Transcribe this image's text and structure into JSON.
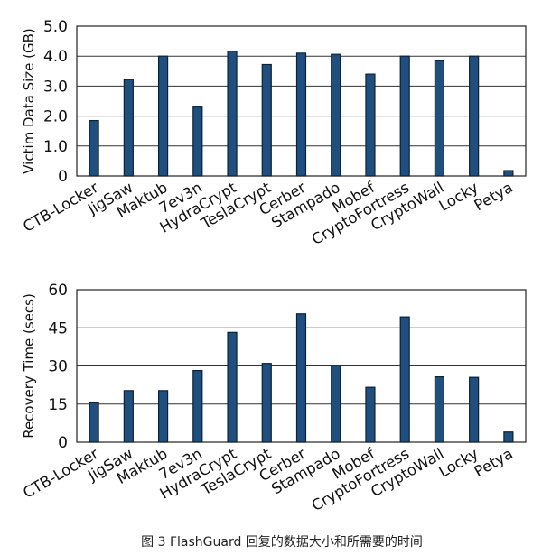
{
  "chart_data": [
    {
      "type": "bar",
      "ylabel": "Victim Data Size (GB)",
      "ylim": [
        0,
        5
      ],
      "yticks": [
        "0",
        "1.0",
        "2.0",
        "3.0",
        "4.0",
        "5.0"
      ],
      "ytick_values": [
        0,
        1,
        2,
        3,
        4,
        5
      ],
      "grid": true,
      "categories": [
        "CTB-Locker",
        "JigSaw",
        "Maktub",
        "7ev3n",
        "HydraCrypt",
        "TeslaCrypt",
        "Cerber",
        "Stampado",
        "Mobef",
        "CryptoFortress",
        "CryptoWall",
        "Locky",
        "Petya"
      ],
      "values": [
        1.85,
        3.22,
        4.0,
        2.3,
        4.17,
        3.72,
        4.1,
        4.06,
        3.4,
        4.0,
        3.85,
        4.0,
        0.18
      ]
    },
    {
      "type": "bar",
      "ylabel": "Recovery Time (secs)",
      "ylim": [
        0,
        60
      ],
      "yticks": [
        "0",
        "15",
        "30",
        "45",
        "60"
      ],
      "ytick_values": [
        0,
        15,
        30,
        45,
        60
      ],
      "grid": true,
      "categories": [
        "CTB-Locker",
        "JigSaw",
        "Maktub",
        "7ev3n",
        "HydraCrypt",
        "TeslaCrypt",
        "Cerber",
        "Stampado",
        "Mobef",
        "CryptoFortress",
        "CryptoWall",
        "Locky",
        "Petya"
      ],
      "values": [
        15.5,
        20.3,
        20.3,
        28.2,
        43.2,
        31.0,
        50.5,
        30.2,
        21.6,
        49.3,
        25.7,
        25.5,
        4.0
      ]
    }
  ],
  "caption": "图 3  FlashGuard 回复的数据大小和所需要的时间"
}
